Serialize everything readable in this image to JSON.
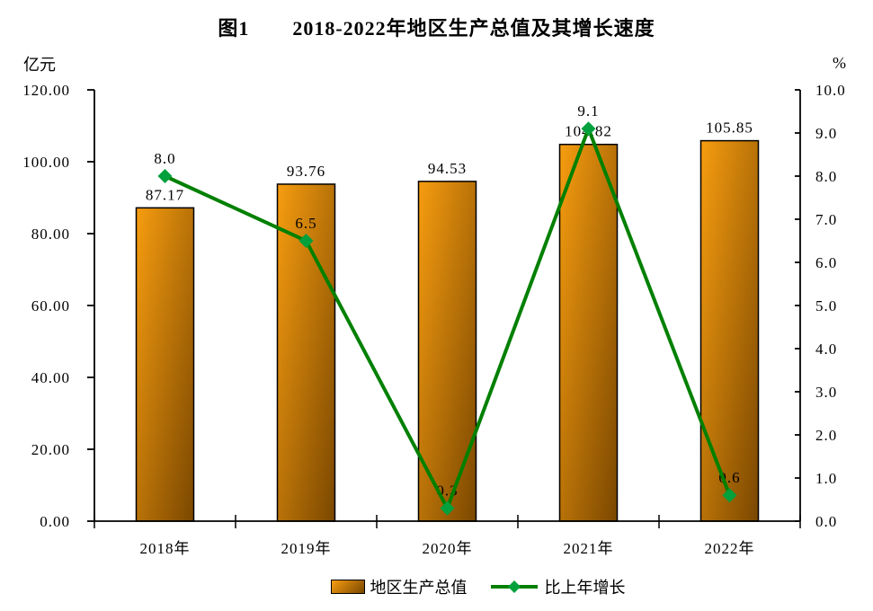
{
  "title": {
    "prefix": "图1",
    "text": "2018-2022年地区生产总值及其增长速度"
  },
  "chart_data": {
    "type": "bar+line",
    "categories": [
      "2018年",
      "2019年",
      "2020年",
      "2021年",
      "2022年"
    ],
    "series": [
      {
        "name": "地区生产总值",
        "type": "bar",
        "axis": "left",
        "values": [
          87.17,
          93.76,
          94.53,
          104.82,
          105.85
        ],
        "labels": [
          "87.17",
          "93.76",
          "94.53",
          "104.82",
          "105.85"
        ]
      },
      {
        "name": "比上年增长",
        "type": "line",
        "axis": "right",
        "values": [
          8.0,
          6.5,
          0.3,
          9.1,
          0.6
        ],
        "labels": [
          "8.0",
          "6.5",
          "0.3",
          "9.1",
          "0.6"
        ]
      }
    ],
    "left_axis": {
      "label": "亿元",
      "min": 0,
      "max": 120,
      "step": 20,
      "ticks": [
        "0.00",
        "20.00",
        "40.00",
        "60.00",
        "80.00",
        "100.00",
        "120.00"
      ]
    },
    "right_axis": {
      "label": "%",
      "min": 0,
      "max": 10,
      "step": 1,
      "ticks": [
        "0.0",
        "1.0",
        "2.0",
        "3.0",
        "4.0",
        "5.0",
        "6.0",
        "7.0",
        "8.0",
        "9.0",
        "10.0"
      ]
    },
    "legend_position": "bottom",
    "grid": false,
    "colors": {
      "bar_top": "#F79D10",
      "bar_bottom": "#7A4700",
      "bar_border": "#000000",
      "line": "#008000",
      "marker": "#00A03C",
      "text": "#000000",
      "background": "#FFFFFF"
    }
  }
}
